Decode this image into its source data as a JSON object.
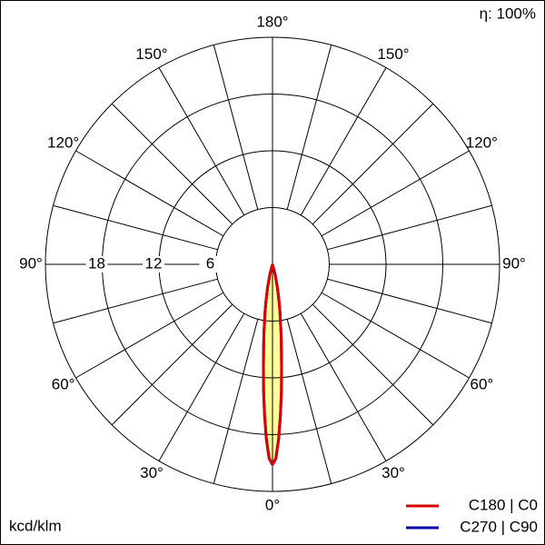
{
  "chart_data": {
    "type": "polar",
    "efficiency": "η: 100%",
    "unit_label": "kcd/klm",
    "rlim": [
      0,
      24
    ],
    "rticks": [
      6,
      12,
      18
    ],
    "angle_grid_step": 15,
    "angle_ticks": [
      {
        "value": 0,
        "label": "0°"
      },
      {
        "value": 30,
        "label": "30°"
      },
      {
        "value": 60,
        "label": "60°"
      },
      {
        "value": 90,
        "label": "90°"
      },
      {
        "value": 120,
        "label": "120°"
      },
      {
        "value": 150,
        "label": "150°"
      },
      {
        "value": 180,
        "label": "180°"
      }
    ],
    "fill": "#ffff99",
    "angles": [
      0,
      1,
      2,
      3,
      4,
      5,
      6,
      7,
      8,
      9,
      10,
      12,
      15,
      20
    ],
    "series": [
      {
        "name": "C270 | C90",
        "color": "#0000aa",
        "values": [
          21.2,
          20.5,
          18.5,
          16,
          13.5,
          11,
          9,
          7.5,
          6,
          5,
          4,
          2.5,
          1,
          0
        ]
      },
      {
        "name": "C180 | C0",
        "color": "#dd0000",
        "values": [
          21.2,
          20.5,
          18.5,
          16,
          13.5,
          11,
          9,
          7.5,
          6,
          5,
          4,
          2.5,
          1,
          0
        ]
      }
    ]
  }
}
